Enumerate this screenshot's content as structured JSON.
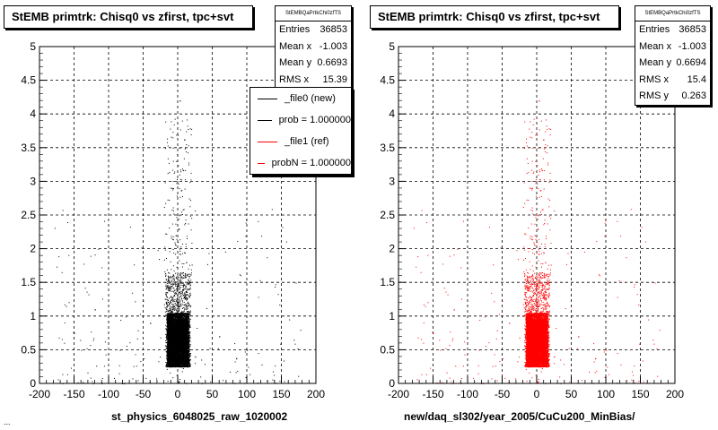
{
  "panels": [
    {
      "title": "StEMB primtrk: Chisq0 vs zfirst, tpc+svt",
      "stats": {
        "name": "StEMBQaPrtkChi0zfTS",
        "rows": [
          {
            "label": "Entries",
            "value": "36853"
          },
          {
            "label": "Mean x",
            "value": "-1.003"
          },
          {
            "label": "Mean y",
            "value": "0.6693"
          },
          {
            "label": "RMS x",
            "value": "15.39"
          }
        ]
      },
      "xlabel": "st_physics_6048025_raw_1020002",
      "color": "#000000"
    },
    {
      "title": "StEMB primtrk: Chisq0 vs zfirst, tpc+svt",
      "stats": {
        "name": "StEMBQaPrtkChi0zfTS",
        "rows": [
          {
            "label": "Entries",
            "value": "36853"
          },
          {
            "label": "Mean x",
            "value": "-1.003"
          },
          {
            "label": "Mean y",
            "value": "0.6694"
          },
          {
            "label": "RMS x",
            "value": "15.4"
          },
          {
            "label": "RMS y",
            "value": "0.263"
          }
        ]
      },
      "xlabel": "new/daq_sl302/year_2005/CuCu200_MinBias/",
      "color": "#ff0000"
    }
  ],
  "legend": [
    {
      "label": "_file0 (new)",
      "color": "#000000"
    },
    {
      "label": "prob = 1.000000",
      "color": "#000000"
    },
    {
      "label": "_file1 (ref)",
      "color": "#ff0000"
    },
    {
      "label": "probN = 1.000000",
      "color": "#ff0000"
    }
  ],
  "footer": "...",
  "chart_data": [
    {
      "type": "scatter",
      "title": "StEMB primtrk: Chisq0 vs zfirst, tpc+svt",
      "xlabel": "st_physics_6048025_raw_1020002",
      "ylabel": "",
      "xlim": [
        -200,
        200
      ],
      "ylim": [
        0,
        5
      ],
      "xticks": [
        -200,
        -150,
        -100,
        -50,
        0,
        50,
        100,
        150,
        200
      ],
      "yticks": [
        0,
        0.5,
        1,
        1.5,
        2,
        2.5,
        3,
        3.5,
        4,
        4.5,
        5
      ],
      "grid": true,
      "series": [
        {
          "name": "_file0 (new)",
          "color": "#000000",
          "x": [
            -15,
            -10,
            -5,
            0,
            5,
            10,
            15,
            -12,
            8,
            -3,
            2,
            -20,
            25,
            -40,
            60,
            100,
            -120,
            3,
            -7,
            12
          ],
          "y": [
            0.6,
            0.7,
            0.5,
            0.65,
            0.8,
            0.55,
            0.6,
            1.2,
            1.4,
            2.2,
            3.5,
            1.0,
            0.4,
            0.9,
            0.7,
            0.5,
            1.1,
            4.2,
            2.9,
            1.8
          ]
        }
      ]
    },
    {
      "type": "scatter",
      "title": "StEMB primtrk: Chisq0 vs zfirst, tpc+svt",
      "xlabel": "new/daq_sl302/year_2005/CuCu200_MinBias/",
      "ylabel": "",
      "xlim": [
        -200,
        200
      ],
      "ylim": [
        0,
        5
      ],
      "xticks": [
        -200,
        -150,
        -100,
        -50,
        0,
        50,
        100,
        150,
        200
      ],
      "yticks": [
        0,
        0.5,
        1,
        1.5,
        2,
        2.5,
        3,
        3.5,
        4,
        4.5,
        5
      ],
      "grid": true,
      "series": [
        {
          "name": "_file1 (ref)",
          "color": "#ff0000",
          "x": [
            -15,
            -10,
            -5,
            0,
            5,
            10,
            15,
            -12,
            8,
            -3,
            2,
            -20,
            25,
            -40,
            60,
            100,
            -120,
            3,
            -7,
            12
          ],
          "y": [
            0.6,
            0.7,
            0.5,
            0.65,
            0.8,
            0.55,
            0.6,
            1.2,
            1.4,
            2.2,
            3.5,
            1.0,
            0.4,
            0.9,
            0.7,
            0.5,
            1.1,
            4.2,
            2.9,
            1.8
          ]
        }
      ]
    }
  ]
}
